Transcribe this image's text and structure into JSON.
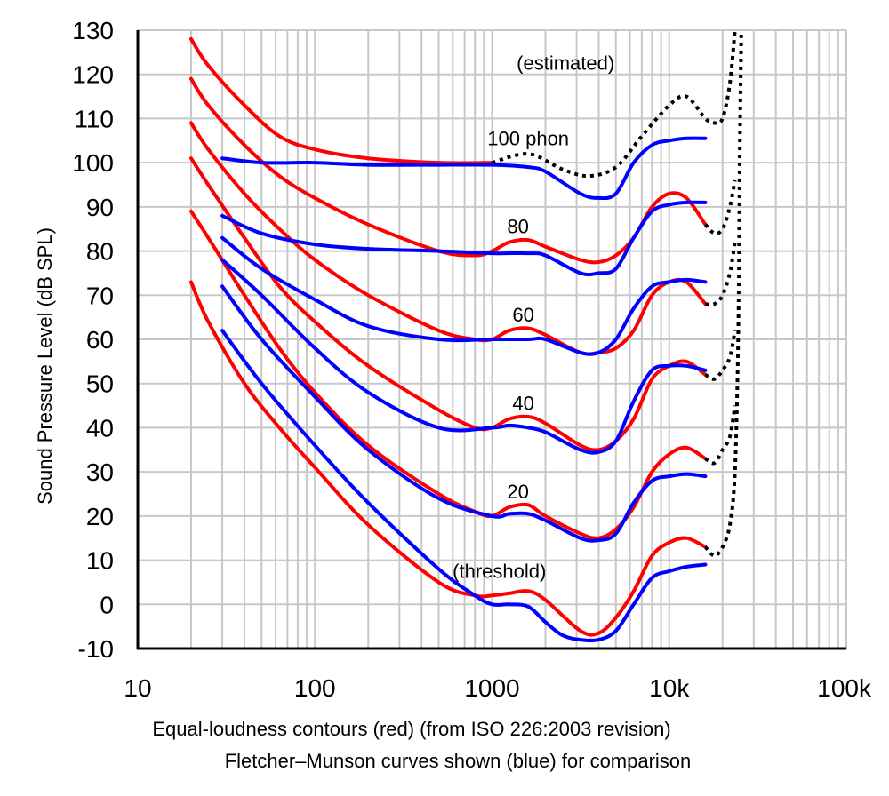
{
  "chart_data": {
    "type": "line",
    "xscale": "log",
    "xlim": [
      10,
      100000
    ],
    "ylim": [
      -10,
      130
    ],
    "grid": true,
    "ylabel": "Sound Pressure Level (dB SPL)",
    "xlabel": "",
    "x_tick_labels": [
      "10",
      "100",
      "1000",
      "10k",
      "100k"
    ],
    "x_tick_values": [
      10,
      100,
      1000,
      10000,
      100000
    ],
    "y_ticks": [
      -10,
      0,
      10,
      20,
      30,
      40,
      50,
      60,
      70,
      80,
      90,
      100,
      110,
      120,
      130
    ],
    "captions": [
      "Equal-loudness contours (red) (from ISO 226:2003 revision)",
      "Fletcher–Munson curves shown (blue) for comparison"
    ],
    "annotations": [
      {
        "text": "(estimated)",
        "x": 2600,
        "y": 121
      },
      {
        "text": "100 phon",
        "x": 1600,
        "y": 104
      },
      {
        "text": "80",
        "x": 1400,
        "y": 84
      },
      {
        "text": "60",
        "x": 1500,
        "y": 64
      },
      {
        "text": "40",
        "x": 1500,
        "y": 44
      },
      {
        "text": "20",
        "x": 1400,
        "y": 24
      },
      {
        "text": "(threshold)",
        "x": 1100,
        "y": 6
      }
    ],
    "series": [
      {
        "color": "#ff0000",
        "style": "solid",
        "points": [
          [
            20,
            128
          ],
          [
            25,
            122
          ],
          [
            40,
            113
          ],
          [
            63,
            106
          ],
          [
            100,
            103
          ],
          [
            200,
            101
          ],
          [
            500,
            100
          ],
          [
            1000,
            100
          ]
        ]
      },
      {
        "color": "#000000",
        "style": "dotted",
        "points": [
          [
            1000,
            100
          ],
          [
            1600,
            102
          ],
          [
            2500,
            98.5
          ],
          [
            3500,
            97
          ],
          [
            5000,
            99
          ],
          [
            7000,
            106
          ],
          [
            10000,
            113
          ],
          [
            12500,
            115
          ],
          [
            16000,
            110
          ],
          [
            18000,
            109
          ],
          [
            20000,
            110
          ],
          [
            22000,
            118
          ],
          [
            23500,
            130
          ]
        ]
      },
      {
        "color": "#ff0000",
        "style": "solid",
        "points": [
          [
            20,
            119
          ],
          [
            25,
            113
          ],
          [
            40,
            104
          ],
          [
            63,
            97
          ],
          [
            100,
            92
          ],
          [
            200,
            86
          ],
          [
            500,
            80
          ],
          [
            800,
            79
          ],
          [
            1000,
            80
          ],
          [
            1250,
            82
          ],
          [
            1600,
            82.5
          ],
          [
            2000,
            81
          ],
          [
            3150,
            78
          ],
          [
            4000,
            77.5
          ],
          [
            5000,
            79
          ],
          [
            6300,
            83
          ],
          [
            8000,
            90
          ],
          [
            10000,
            93
          ],
          [
            12500,
            92
          ],
          [
            16000,
            86
          ]
        ]
      },
      {
        "color": "#000000",
        "style": "dotted",
        "points": [
          [
            16000,
            86
          ],
          [
            18000,
            84
          ],
          [
            20000,
            85
          ],
          [
            22000,
            90
          ],
          [
            23500,
            96
          ]
        ]
      },
      {
        "color": "#ff0000",
        "style": "solid",
        "points": [
          [
            20,
            109
          ],
          [
            25,
            103
          ],
          [
            40,
            93
          ],
          [
            63,
            85
          ],
          [
            100,
            78
          ],
          [
            200,
            70
          ],
          [
            500,
            62
          ],
          [
            800,
            60
          ],
          [
            1000,
            60
          ],
          [
            1250,
            62
          ],
          [
            1600,
            62.5
          ],
          [
            2000,
            61
          ],
          [
            3150,
            57
          ],
          [
            4000,
            57
          ],
          [
            5000,
            58
          ],
          [
            6300,
            62
          ],
          [
            8000,
            70
          ],
          [
            10000,
            73
          ],
          [
            12500,
            73
          ],
          [
            16000,
            68
          ]
        ]
      },
      {
        "color": "#000000",
        "style": "dotted",
        "points": [
          [
            16000,
            68
          ],
          [
            18000,
            68
          ],
          [
            20000,
            70
          ],
          [
            22000,
            75
          ],
          [
            23500,
            82
          ]
        ]
      },
      {
        "color": "#ff0000",
        "style": "solid",
        "points": [
          [
            20,
            101
          ],
          [
            25,
            95
          ],
          [
            40,
            83
          ],
          [
            63,
            72
          ],
          [
            100,
            64
          ],
          [
            200,
            54
          ],
          [
            500,
            44
          ],
          [
            800,
            40
          ],
          [
            1000,
            40
          ],
          [
            1250,
            42
          ],
          [
            1600,
            42.5
          ],
          [
            2000,
            41
          ],
          [
            3150,
            36
          ],
          [
            4000,
            35
          ],
          [
            5000,
            37
          ],
          [
            6300,
            42
          ],
          [
            8000,
            51
          ],
          [
            10000,
            54
          ],
          [
            12500,
            55
          ],
          [
            16000,
            52
          ]
        ]
      },
      {
        "color": "#000000",
        "style": "dotted",
        "points": [
          [
            16000,
            52
          ],
          [
            18000,
            51
          ],
          [
            20000,
            53
          ],
          [
            22000,
            56
          ],
          [
            23500,
            62
          ]
        ]
      },
      {
        "color": "#ff0000",
        "style": "solid",
        "points": [
          [
            20,
            89
          ],
          [
            25,
            83
          ],
          [
            40,
            70
          ],
          [
            63,
            58
          ],
          [
            100,
            48
          ],
          [
            200,
            36
          ],
          [
            500,
            25
          ],
          [
            800,
            21
          ],
          [
            1000,
            20
          ],
          [
            1250,
            22
          ],
          [
            1600,
            22.5
          ],
          [
            2000,
            20
          ],
          [
            3150,
            16
          ],
          [
            4000,
            15
          ],
          [
            5000,
            17
          ],
          [
            6300,
            22
          ],
          [
            8000,
            30
          ],
          [
            10000,
            34
          ],
          [
            12500,
            35.5
          ],
          [
            16000,
            33
          ]
        ]
      },
      {
        "color": "#000000",
        "style": "dotted",
        "points": [
          [
            16000,
            33
          ],
          [
            18000,
            32
          ],
          [
            20000,
            35
          ],
          [
            22000,
            38
          ],
          [
            23500,
            45
          ]
        ]
      },
      {
        "color": "#ff0000",
        "style": "solid",
        "points": [
          [
            20,
            73
          ],
          [
            25,
            64
          ],
          [
            40,
            50
          ],
          [
            63,
            40
          ],
          [
            100,
            31
          ],
          [
            200,
            18
          ],
          [
            500,
            5
          ],
          [
            800,
            2
          ],
          [
            1000,
            2
          ],
          [
            1250,
            2.5
          ],
          [
            1600,
            3
          ],
          [
            2000,
            1
          ],
          [
            3150,
            -6
          ],
          [
            4000,
            -6.5
          ],
          [
            5000,
            -3
          ],
          [
            6300,
            3
          ],
          [
            8000,
            11
          ],
          [
            10000,
            14
          ],
          [
            12500,
            15
          ],
          [
            16000,
            13
          ]
        ]
      },
      {
        "color": "#000000",
        "style": "dotted",
        "points": [
          [
            16000,
            13
          ],
          [
            18000,
            11
          ],
          [
            20000,
            13
          ],
          [
            22000,
            18
          ],
          [
            23500,
            30
          ],
          [
            24500,
            60
          ],
          [
            25000,
            100
          ],
          [
            25500,
            130
          ]
        ]
      },
      {
        "color": "#0000ff",
        "style": "solid",
        "points": [
          [
            30,
            101
          ],
          [
            50,
            100
          ],
          [
            100,
            100
          ],
          [
            200,
            99.5
          ],
          [
            500,
            99.5
          ],
          [
            1000,
            99.5
          ],
          [
            1600,
            99
          ],
          [
            2000,
            98
          ],
          [
            3150,
            93
          ],
          [
            4000,
            92
          ],
          [
            5000,
            93
          ],
          [
            6300,
            100
          ],
          [
            8000,
            104
          ],
          [
            10000,
            105
          ],
          [
            12500,
            105.5
          ],
          [
            16000,
            105.5
          ]
        ]
      },
      {
        "color": "#0000ff",
        "style": "solid",
        "points": [
          [
            30,
            88
          ],
          [
            50,
            84
          ],
          [
            100,
            81.5
          ],
          [
            200,
            80.5
          ],
          [
            500,
            80
          ],
          [
            1000,
            79.5
          ],
          [
            1600,
            79.5
          ],
          [
            2000,
            79
          ],
          [
            3150,
            75
          ],
          [
            4000,
            75
          ],
          [
            5000,
            76
          ],
          [
            6300,
            83
          ],
          [
            8000,
            89
          ],
          [
            10000,
            90.5
          ],
          [
            12500,
            91
          ],
          [
            16000,
            91
          ]
        ]
      },
      {
        "color": "#0000ff",
        "style": "solid",
        "points": [
          [
            30,
            83
          ],
          [
            50,
            76
          ],
          [
            100,
            69
          ],
          [
            200,
            63
          ],
          [
            500,
            60
          ],
          [
            1000,
            60
          ],
          [
            1600,
            60
          ],
          [
            2000,
            60
          ],
          [
            3150,
            57
          ],
          [
            4000,
            57
          ],
          [
            5000,
            60
          ],
          [
            6300,
            67
          ],
          [
            8000,
            72
          ],
          [
            10000,
            73
          ],
          [
            12500,
            73.5
          ],
          [
            16000,
            73
          ]
        ]
      },
      {
        "color": "#0000ff",
        "style": "solid",
        "points": [
          [
            30,
            78
          ],
          [
            50,
            70
          ],
          [
            100,
            58
          ],
          [
            200,
            48
          ],
          [
            500,
            40
          ],
          [
            1000,
            40
          ],
          [
            1250,
            40.5
          ],
          [
            1600,
            40
          ],
          [
            2000,
            39
          ],
          [
            3150,
            35
          ],
          [
            4000,
            34.5
          ],
          [
            5000,
            37
          ],
          [
            6300,
            46
          ],
          [
            8000,
            53
          ],
          [
            10000,
            54
          ],
          [
            12500,
            54
          ],
          [
            16000,
            53
          ]
        ]
      },
      {
        "color": "#0000ff",
        "style": "solid",
        "points": [
          [
            30,
            72
          ],
          [
            50,
            60
          ],
          [
            100,
            47
          ],
          [
            200,
            35
          ],
          [
            500,
            24
          ],
          [
            1000,
            20
          ],
          [
            1250,
            20.5
          ],
          [
            1600,
            20.5
          ],
          [
            2000,
            19
          ],
          [
            3150,
            15
          ],
          [
            4000,
            14.5
          ],
          [
            5000,
            16
          ],
          [
            6300,
            23
          ],
          [
            8000,
            28
          ],
          [
            10000,
            29
          ],
          [
            12500,
            29.5
          ],
          [
            16000,
            29
          ]
        ]
      },
      {
        "color": "#0000ff",
        "style": "solid",
        "points": [
          [
            30,
            62
          ],
          [
            50,
            50
          ],
          [
            100,
            36
          ],
          [
            200,
            23
          ],
          [
            500,
            8
          ],
          [
            800,
            2
          ],
          [
            1000,
            0
          ],
          [
            1250,
            0
          ],
          [
            1600,
            -0.5
          ],
          [
            2000,
            -4
          ],
          [
            2500,
            -7
          ],
          [
            3150,
            -8
          ],
          [
            4000,
            -8
          ],
          [
            5000,
            -6
          ],
          [
            6300,
            0
          ],
          [
            8000,
            6
          ],
          [
            10000,
            7.5
          ],
          [
            12500,
            8.5
          ],
          [
            16000,
            9
          ]
        ]
      }
    ]
  }
}
